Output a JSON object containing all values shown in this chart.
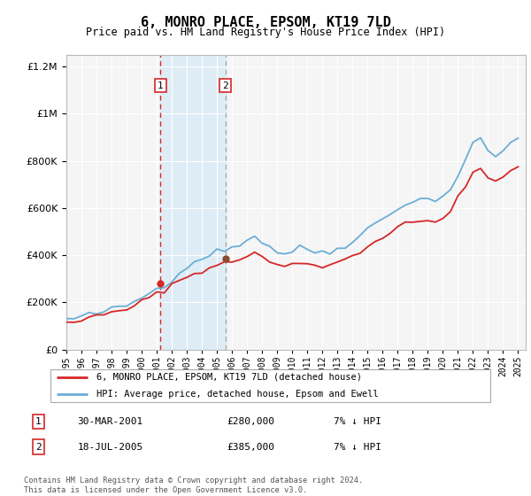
{
  "title": "6, MONRO PLACE, EPSOM, KT19 7LD",
  "subtitle": "Price paid vs. HM Land Registry's House Price Index (HPI)",
  "footer1": "Contains HM Land Registry data © Crown copyright and database right 2024.",
  "footer2": "This data is licensed under the Open Government Licence v3.0.",
  "legend_line1": "6, MONRO PLACE, EPSOM, KT19 7LD (detached house)",
  "legend_line2": "HPI: Average price, detached house, Epsom and Ewell",
  "table": [
    {
      "num": "1",
      "date": "30-MAR-2001",
      "price": "£280,000",
      "hpi": "7% ↓ HPI"
    },
    {
      "num": "2",
      "date": "18-JUL-2005",
      "price": "£385,000",
      "hpi": "7% ↓ HPI"
    }
  ],
  "transaction1": {
    "year": 2001.25,
    "price": 280000
  },
  "transaction2": {
    "year": 2005.55,
    "price": 385000
  },
  "hpi_color": "#6baed6",
  "price_color": "#d62728",
  "shade_color": "#d0e8f5",
  "marker_color": "#8c4a2f",
  "ylim": [
    0,
    1250000
  ],
  "yticks": [
    0,
    200000,
    400000,
    600000,
    800000,
    1000000,
    1200000
  ],
  "xlim": [
    1995,
    2025.5
  ],
  "background": "#f5f5f5",
  "years_hpi": [
    1995,
    1995.5,
    1996,
    1996.5,
    1997,
    1997.5,
    1998,
    1998.5,
    1999,
    1999.5,
    2000,
    2000.5,
    2001,
    2001.5,
    2002,
    2002.5,
    2003,
    2003.5,
    2004,
    2004.5,
    2005,
    2005.5,
    2006,
    2006.5,
    2007,
    2007.5,
    2008,
    2008.5,
    2009,
    2009.5,
    2010,
    2010.5,
    2011,
    2011.5,
    2012,
    2012.5,
    2013,
    2013.5,
    2014,
    2014.5,
    2015,
    2015.5,
    2016,
    2016.5,
    2017,
    2017.5,
    2018,
    2018.5,
    2019,
    2019.5,
    2020,
    2020.5,
    2021,
    2021.5,
    2022,
    2022.5,
    2023,
    2023.5,
    2024,
    2024.5,
    2025
  ],
  "hpi_vals": [
    128000,
    132000,
    138000,
    145000,
    153000,
    162000,
    168000,
    178000,
    188000,
    200000,
    222000,
    242000,
    258000,
    278000,
    300000,
    328000,
    352000,
    370000,
    390000,
    408000,
    415000,
    418000,
    435000,
    450000,
    468000,
    480000,
    460000,
    435000,
    415000,
    408000,
    418000,
    428000,
    425000,
    418000,
    412000,
    415000,
    428000,
    445000,
    465000,
    482000,
    510000,
    535000,
    555000,
    575000,
    605000,
    618000,
    628000,
    632000,
    638000,
    642000,
    648000,
    680000,
    740000,
    800000,
    870000,
    890000,
    850000,
    820000,
    840000,
    870000,
    900000
  ],
  "red_vals": [
    118000,
    122000,
    128000,
    134000,
    140000,
    148000,
    155000,
    163000,
    172000,
    183000,
    203000,
    221000,
    236000,
    255000,
    275000,
    293000,
    308000,
    322000,
    335000,
    348000,
    355000,
    364000,
    374000,
    385000,
    397000,
    408000,
    393000,
    374000,
    358000,
    352000,
    360000,
    369000,
    366000,
    360000,
    355000,
    358000,
    370000,
    384000,
    400000,
    416000,
    438000,
    460000,
    476000,
    494000,
    519000,
    530000,
    539000,
    542000,
    547000,
    551000,
    556000,
    584000,
    638000,
    690000,
    750000,
    768000,
    734000,
    708000,
    727000,
    754000,
    780000
  ]
}
